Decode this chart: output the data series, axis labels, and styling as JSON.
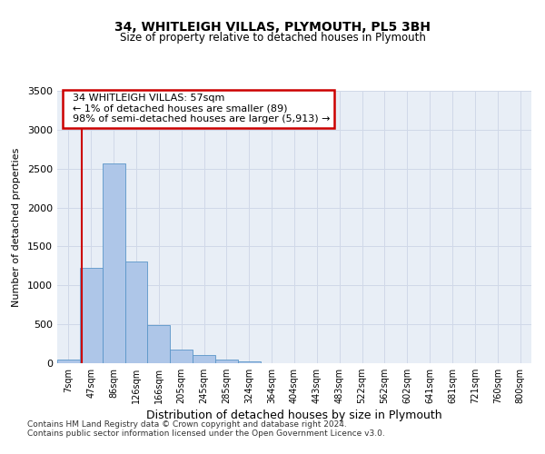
{
  "title1": "34, WHITLEIGH VILLAS, PLYMOUTH, PL5 3BH",
  "title2": "Size of property relative to detached houses in Plymouth",
  "xlabel": "Distribution of detached houses by size in Plymouth",
  "ylabel": "Number of detached properties",
  "bar_labels": [
    "7sqm",
    "47sqm",
    "86sqm",
    "126sqm",
    "166sqm",
    "205sqm",
    "245sqm",
    "285sqm",
    "324sqm",
    "364sqm",
    "404sqm",
    "443sqm",
    "483sqm",
    "522sqm",
    "562sqm",
    "602sqm",
    "641sqm",
    "681sqm",
    "721sqm",
    "760sqm",
    "800sqm"
  ],
  "bar_values": [
    50,
    1230,
    2570,
    1310,
    490,
    175,
    100,
    45,
    20,
    5,
    2,
    1,
    0,
    0,
    0,
    0,
    0,
    0,
    0,
    0,
    0
  ],
  "bar_color": "#aec6e8",
  "bar_edge_color": "#5a96c8",
  "ylim": [
    0,
    3500
  ],
  "yticks": [
    0,
    500,
    1000,
    1500,
    2000,
    2500,
    3000,
    3500
  ],
  "property_line_x": 0.57,
  "annotation_text": "  34 WHITLEIGH VILLAS: 57sqm\n  ← 1% of detached houses are smaller (89)\n  98% of semi-detached houses are larger (5,913) →",
  "annotation_box_color": "#ffffff",
  "annotation_box_edge": "#cc0000",
  "footer1": "Contains HM Land Registry data © Crown copyright and database right 2024.",
  "footer2": "Contains public sector information licensed under the Open Government Licence v3.0.",
  "grid_color": "#d0d8e8",
  "background_color": "#e8eef6"
}
